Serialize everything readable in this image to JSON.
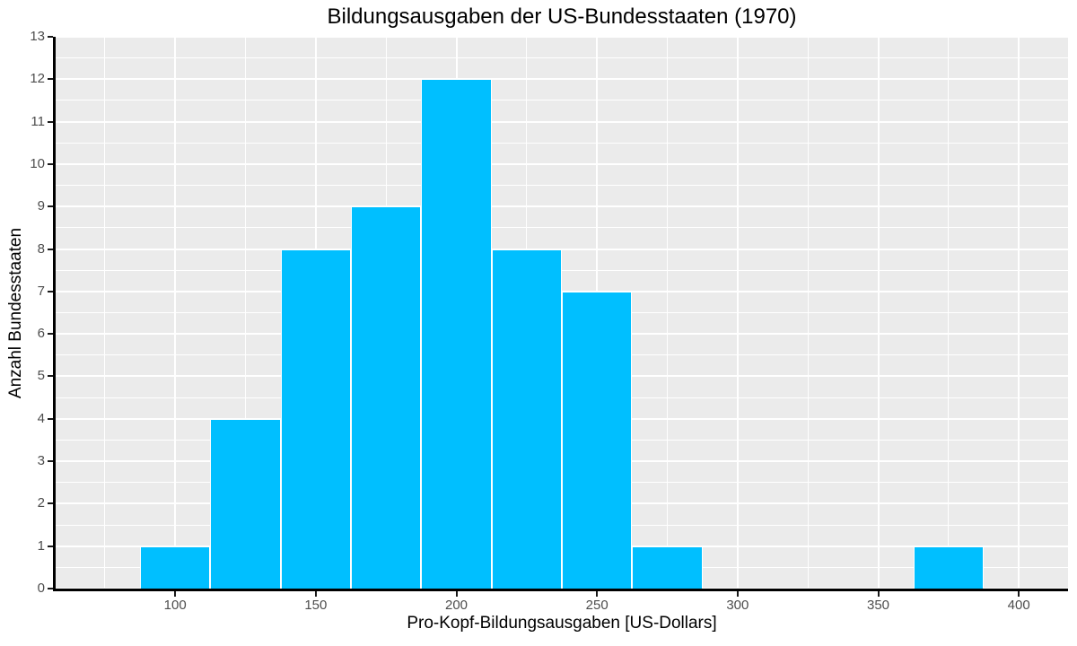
{
  "chart_data": {
    "type": "bar",
    "subtype": "histogram",
    "title": "Bildungsausgaben der US-Bundesstaaten (1970)",
    "xlabel": "Pro-Kopf-Bildungsausgaben [US-Dollars]",
    "ylabel": "Anzahl Bundesstaaten",
    "bins": {
      "start": 87.5,
      "width": 25,
      "counts": [
        1,
        4,
        8,
        9,
        12,
        8,
        7,
        1,
        0,
        0,
        0,
        1
      ]
    },
    "bin_edges": [
      87.5,
      112.5,
      137.5,
      162.5,
      187.5,
      212.5,
      237.5,
      262.5,
      287.5,
      312.5,
      337.5,
      362.5,
      387.5
    ],
    "x_ticks": [
      100,
      150,
      200,
      250,
      300,
      350,
      400
    ],
    "y_ticks": [
      0,
      1,
      2,
      3,
      4,
      5,
      6,
      7,
      8,
      9,
      10,
      11,
      12,
      13
    ],
    "x_minor": [
      75,
      125,
      175,
      225,
      275,
      325,
      375
    ],
    "y_minor": [
      0.5,
      1.5,
      2.5,
      3.5,
      4.5,
      5.5,
      6.5,
      7.5,
      8.5,
      9.5,
      10.5,
      11.5,
      12.5
    ],
    "xlim": [
      57.5,
      417.5
    ],
    "ylim": [
      0,
      13
    ],
    "grid": "major-and-minor",
    "legend": false,
    "colors": {
      "bar_fill": "#00BFFF",
      "bar_border": "#FFFFFF",
      "panel_bg": "#EBEBEB",
      "grid": "#FFFFFF",
      "axis_line": "#000000",
      "tick_mark": "#1a1a1a",
      "tick_label": "#4D4D4D",
      "text": "#000000"
    }
  }
}
